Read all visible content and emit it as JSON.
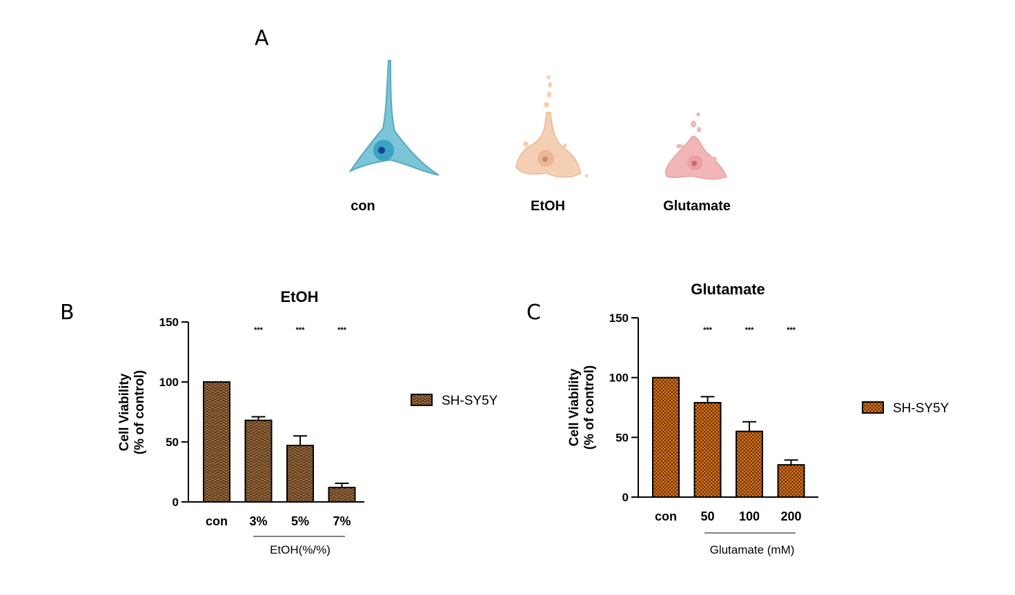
{
  "panel_labels": {
    "a": "A",
    "b": "B",
    "c": "C"
  },
  "cells": [
    {
      "label": "con",
      "icon": "healthy-neuron-icon",
      "color": "#7cc4d8"
    },
    {
      "label": "EtOH",
      "icon": "damaged-neuron-icon",
      "color": "#f5cfb4"
    },
    {
      "label": "Glutamate",
      "icon": "degraded-neuron-icon",
      "color": "#f3b6b8"
    }
  ],
  "chart_data": [
    {
      "type": "bar",
      "title": "EtOH",
      "categories": [
        "con",
        "3%",
        "5%",
        "7%"
      ],
      "values": [
        100,
        68,
        47,
        12
      ],
      "errors": [
        0,
        3,
        8,
        3.5
      ],
      "significance": [
        "",
        "***",
        "***",
        "***"
      ],
      "ylabel": [
        "Cell Viability",
        "(% of control)"
      ],
      "xlabel": "EtOH(%/%)",
      "ylim": [
        0,
        150
      ],
      "yticks": [
        0,
        50,
        100,
        150
      ],
      "series": [
        {
          "name": "SH-SY5Y",
          "values": [
            100,
            68,
            47,
            12
          ]
        }
      ],
      "legend": "right",
      "pattern": "herringbone",
      "color": "#a0703f"
    },
    {
      "type": "bar",
      "title": "Glutamate",
      "categories": [
        "con",
        "50",
        "100",
        "200"
      ],
      "values": [
        100,
        79,
        55,
        27
      ],
      "errors": [
        0,
        5,
        8,
        4
      ],
      "significance": [
        "",
        "***",
        "***",
        "***"
      ],
      "ylabel": [
        "Cell Viability",
        "(% of control)"
      ],
      "xlabel": "Glutamate (mM)",
      "ylim": [
        0,
        150
      ],
      "yticks": [
        0,
        50,
        100,
        150
      ],
      "series": [
        {
          "name": "SH-SY5Y",
          "values": [
            100,
            79,
            55,
            27
          ]
        }
      ],
      "legend": "right",
      "pattern": "checker",
      "color": "#e07b20"
    }
  ]
}
